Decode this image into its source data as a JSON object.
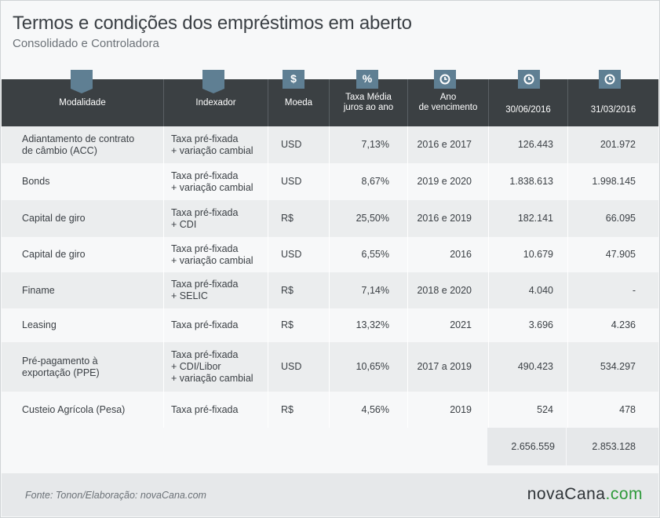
{
  "title": "Termos e condições dos empréstimos em aberto",
  "subtitle": "Consolidado e Controladora",
  "headers": {
    "modalidade": "Modalidade",
    "indexador": "Indexador",
    "moeda": "Moeda",
    "taxa_l1": "Taxa Média",
    "taxa_l2": "juros ao ano",
    "ano_l1": "Ano",
    "ano_l2": "de vencimento",
    "d1": "30/06/2016",
    "d2": "31/03/2016"
  },
  "header_icons": [
    "arrow-tab",
    "arrow-tab",
    "dollar-icon",
    "percent-icon",
    "clock-icon",
    "clock-icon",
    "clock-icon"
  ],
  "rows": [
    {
      "modalidade": [
        "Adiantamento de contrato",
        "de câmbio (ACC)"
      ],
      "indexador": [
        "Taxa pré-fixada",
        "+ variação cambial"
      ],
      "moeda": "USD",
      "taxa": "7,13%",
      "ano": "2016 e 2017",
      "v1": "126.443",
      "v2": "201.972"
    },
    {
      "modalidade": [
        "Bonds"
      ],
      "indexador": [
        "Taxa pré-fixada",
        "+ variação cambial"
      ],
      "moeda": "USD",
      "taxa": "8,67%",
      "ano": "2019 e 2020",
      "v1": "1.838.613",
      "v2": "1.998.145"
    },
    {
      "modalidade": [
        "Capital de giro"
      ],
      "indexador": [
        "Taxa pré-fixada",
        "+ CDI"
      ],
      "moeda": "R$",
      "taxa": "25,50%",
      "ano": "2016 e 2019",
      "v1": "182.141",
      "v2": "66.095"
    },
    {
      "modalidade": [
        "Capital de giro"
      ],
      "indexador": [
        "Taxa pré-fixada",
        "+ variação cambial"
      ],
      "moeda": "USD",
      "taxa": "6,55%",
      "ano": "2016",
      "v1": "10.679",
      "v2": "47.905"
    },
    {
      "modalidade": [
        "Finame"
      ],
      "indexador": [
        "Taxa pré-fixada",
        "+ SELIC"
      ],
      "moeda": "R$",
      "taxa": "7,14%",
      "ano": "2018 e 2020",
      "v1": "4.040",
      "v2": "-"
    },
    {
      "modalidade": [
        "Leasing"
      ],
      "indexador": [
        "Taxa pré-fixada"
      ],
      "moeda": "R$",
      "taxa": "13,32%",
      "ano": "2021",
      "v1": "3.696",
      "v2": "4.236"
    },
    {
      "modalidade": [
        "Pré-pagamento à",
        "exportação (PPE)"
      ],
      "indexador": [
        "Taxa pré-fixada",
        "+ CDI/Libor",
        "+ variação cambial"
      ],
      "moeda": "USD",
      "taxa": "10,65%",
      "ano": "2017 a 2019",
      "v1": "490.423",
      "v2": "534.297"
    },
    {
      "modalidade": [
        "Custeio Agrícola (Pesa)"
      ],
      "indexador": [
        "Taxa pré-fixada"
      ],
      "moeda": "R$",
      "taxa": "4,56%",
      "ano": "2019",
      "v1": "524",
      "v2": "478"
    }
  ],
  "totals": {
    "v1": "2.656.559",
    "v2": "2.853.128"
  },
  "source": "Fonte:  Tonon/Elaboração: novaCana.com",
  "logo": {
    "main": "novaCana",
    "suffix": ".com"
  },
  "colors": {
    "header_bg": "#3b4043",
    "tab": "#5f7f93",
    "accent_green": "#2e9a3a"
  }
}
